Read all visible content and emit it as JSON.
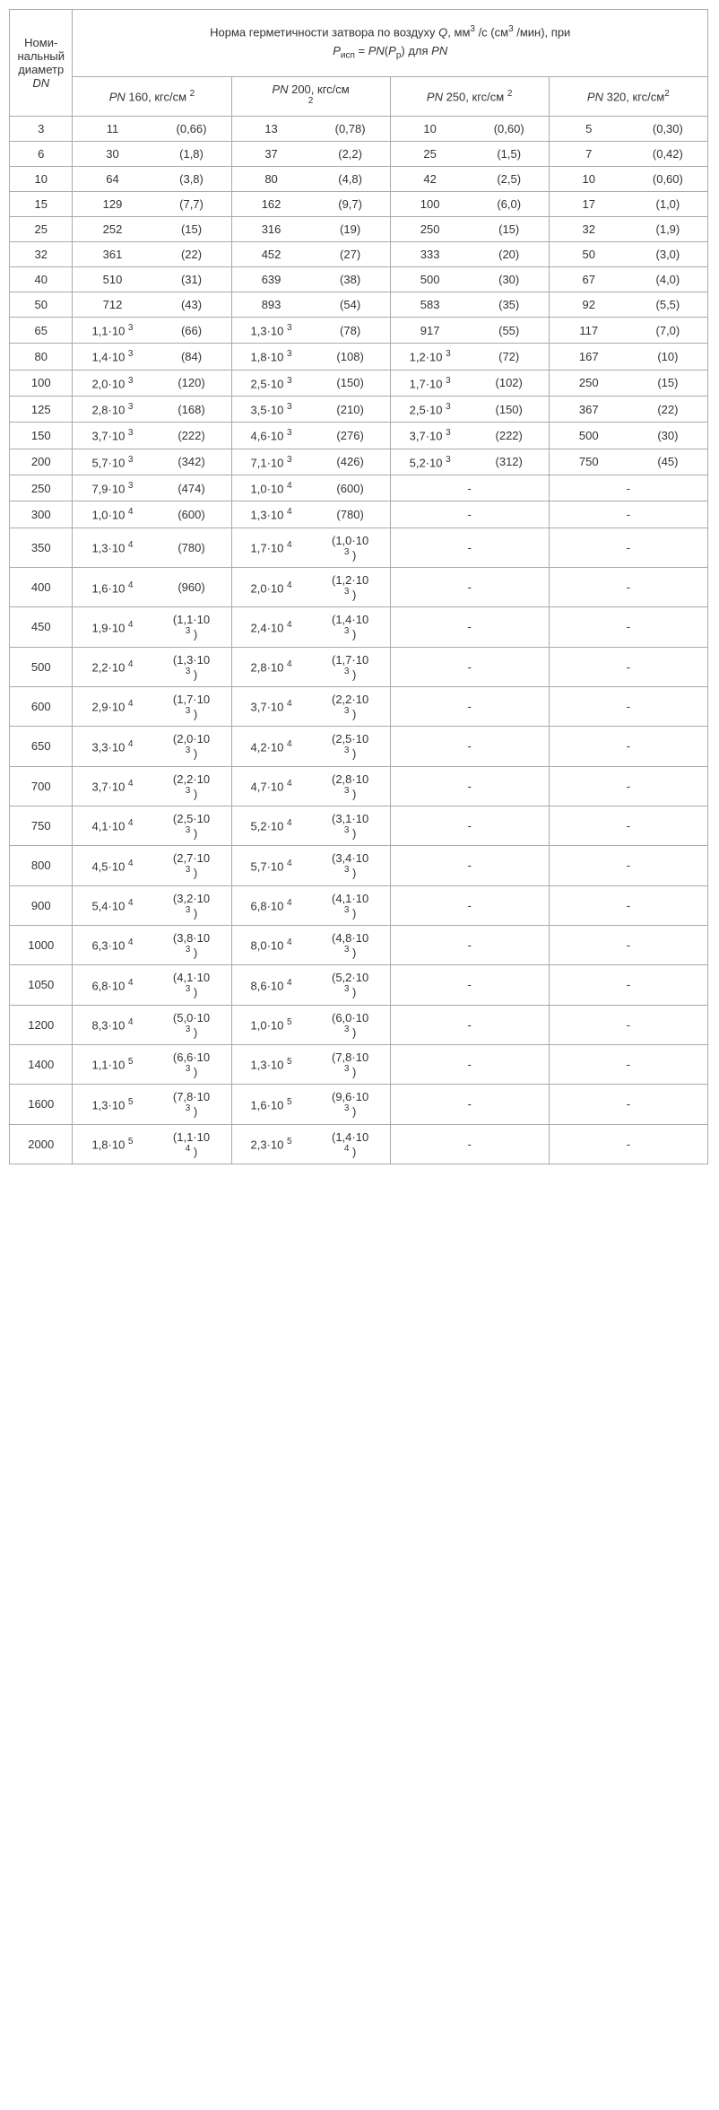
{
  "header": {
    "dn_label_l1": "Номи-",
    "dn_label_l2": "нальный",
    "dn_label_l3": "диаметр",
    "dn_symbol": "DN",
    "norm_line1_a": "Норма герметичности затвора по воздуху ",
    "norm_line1_q": "Q",
    "norm_line1_b": ", мм",
    "norm_line1_c": " /с (см",
    "norm_line1_d": " /мин), при",
    "norm_line2_a": "P",
    "norm_line2_sub": "исп",
    "norm_line2_eq": " = ",
    "norm_line2_pn": "PN",
    "norm_line2_paren_open": "(",
    "norm_line2_pp": "P",
    "norm_line2_pp_sub": "р",
    "norm_line2_paren_close": ")",
    "norm_line2_dlya": "  для  ",
    "norm_line2_pn2": "PN",
    "col_pn": "PN",
    "col_unit": ", кгс/см",
    "col_160": " 160",
    "col_200": " 200",
    "col_250": " 250",
    "col_320": " 320"
  },
  "rows": [
    {
      "dn": "3",
      "a1": "11",
      "b1": "(0,66)",
      "a2": "13",
      "b2": "(0,78)",
      "a3": "10",
      "b3": "(0,60)",
      "a4": "5",
      "b4": "(0,30)"
    },
    {
      "dn": "6",
      "a1": "30",
      "b1": "(1,8)",
      "a2": "37",
      "b2": "(2,2)",
      "a3": "25",
      "b3": "(1,5)",
      "a4": "7",
      "b4": "(0,42)"
    },
    {
      "dn": "10",
      "a1": "64",
      "b1": "(3,8)",
      "a2": "80",
      "b2": "(4,8)",
      "a3": "42",
      "b3": "(2,5)",
      "a4": "10",
      "b4": "(0,60)"
    },
    {
      "dn": "15",
      "a1": "129",
      "b1": "(7,7)",
      "a2": "162",
      "b2": "(9,7)",
      "a3": "100",
      "b3": "(6,0)",
      "a4": "17",
      "b4": "(1,0)"
    },
    {
      "dn": "25",
      "a1": "252",
      "b1": "(15)",
      "a2": "316",
      "b2": "(19)",
      "a3": "250",
      "b3": "(15)",
      "a4": "32",
      "b4": "(1,9)"
    },
    {
      "dn": "32",
      "a1": "361",
      "b1": "(22)",
      "a2": "452",
      "b2": "(27)",
      "a3": "333",
      "b3": "(20)",
      "a4": "50",
      "b4": "(3,0)"
    },
    {
      "dn": "40",
      "a1": "510",
      "b1": "(31)",
      "a2": "639",
      "b2": "(38)",
      "a3": "500",
      "b3": "(30)",
      "a4": "67",
      "b4": "(4,0)"
    },
    {
      "dn": "50",
      "a1": "712",
      "b1": "(43)",
      "a2": "893",
      "b2": "(54)",
      "a3": "583",
      "b3": "(35)",
      "a4": "92",
      "b4": "(5,5)"
    },
    {
      "dn": "65",
      "a1": "1,1·10",
      "e1": "3",
      "b1": "(66)",
      "a2": "1,3·10",
      "e2": "3",
      "b2": "(78)",
      "a3": "917",
      "b3": "(55)",
      "a4": "117",
      "b4": "(7,0)"
    },
    {
      "dn": "80",
      "a1": "1,4·10",
      "e1": "3",
      "b1": "(84)",
      "a2": "1,8·10",
      "e2": "3",
      "b2": "(108)",
      "a3": "1,2·10",
      "e3": "3",
      "b3": "(72)",
      "a4": "167",
      "b4": "(10)"
    },
    {
      "dn": "100",
      "a1": "2,0·10",
      "e1": "3",
      "b1": "(120)",
      "a2": "2,5·10",
      "e2": "3",
      "b2": "(150)",
      "a3": "1,7·10",
      "e3": "3",
      "b3": "(102)",
      "a4": "250",
      "b4": "(15)"
    },
    {
      "dn": "125",
      "a1": "2,8·10",
      "e1": "3",
      "b1": "(168)",
      "a2": "3,5·10",
      "e2": "3",
      "b2": "(210)",
      "a3": "2,5·10",
      "e3": "3",
      "b3": "(150)",
      "a4": "367",
      "b4": "(22)"
    },
    {
      "dn": "150",
      "a1": "3,7·10",
      "e1": "3",
      "b1": "(222)",
      "a2": "4,6·10",
      "e2": "3",
      "b2": "(276)",
      "a3": "3,7·10",
      "e3": "3",
      "b3": "(222)",
      "a4": "500",
      "b4": "(30)"
    },
    {
      "dn": "200",
      "a1": "5,7·10",
      "e1": "3",
      "b1": "(342)",
      "a2": "7,1·10",
      "e2": "3",
      "b2": "(426)",
      "a3": "5,2·10",
      "e3": "3",
      "b3": "(312)",
      "a4": "750",
      "b4": "(45)"
    },
    {
      "dn": "250",
      "a1": "7,9·10",
      "e1": "3",
      "b1": "(474)",
      "a2": "1,0·10",
      "e2": "4",
      "b2": "(600)",
      "dash34": true
    },
    {
      "dn": "300",
      "a1": "1,0·10",
      "e1": "4",
      "b1": "(600)",
      "a2": "1,3·10",
      "e2": "4",
      "b2": "(780)",
      "dash34": true
    },
    {
      "dn": "350",
      "a1": "1,3·10",
      "e1": "4",
      "b1": "(780)",
      "a2": "1,7·10",
      "e2": "4",
      "b2": "(1,0·10",
      "be2": "3",
      "b2_close": " )",
      "dash34": true
    },
    {
      "dn": "400",
      "a1": "1,6·10",
      "e1": "4",
      "b1": "(960)",
      "a2": "2,0·10",
      "e2": "4",
      "b2": "(1,2·10",
      "be2": "3",
      "b2_close": " )",
      "dash34": true
    },
    {
      "dn": "450",
      "a1": "1,9·10",
      "e1": "4",
      "b1": "(1,1·10",
      "be1": "3",
      "b1_close": " )",
      "a2": "2,4·10",
      "e2": "4",
      "b2": "(1,4·10",
      "be2": "3",
      "b2_close": " )",
      "dash34": true
    },
    {
      "dn": "500",
      "a1": "2,2·10",
      "e1": "4",
      "b1": "(1,3·10",
      "be1": "3",
      "b1_close": " )",
      "a2": "2,8·10",
      "e2": "4",
      "b2": "(1,7·10",
      "be2": "3",
      "b2_close": " )",
      "dash34": true
    },
    {
      "dn": "600",
      "a1": "2,9·10",
      "e1": "4",
      "b1": "(1,7·10",
      "be1": "3",
      "b1_close": " )",
      "a2": "3,7·10",
      "e2": "4",
      "b2": "(2,2·10",
      "be2": "3",
      "b2_close": " )",
      "dash34": true
    },
    {
      "dn": "650",
      "a1": "3,3·10",
      "e1": "4",
      "b1": "(2,0·10",
      "be1": "3",
      "b1_close": " )",
      "a2": "4,2·10",
      "e2": "4",
      "b2": "(2,5·10",
      "be2": "3",
      "b2_close": " )",
      "dash34": true
    },
    {
      "dn": "700",
      "a1": "3,7·10",
      "e1": "4",
      "b1": "(2,2·10",
      "be1": "3",
      "b1_close": " )",
      "a2": "4,7·10",
      "e2": "4",
      "b2": "(2,8·10",
      "be2": "3",
      "b2_close": " )",
      "dash34": true
    },
    {
      "dn": "750",
      "a1": "4,1·10",
      "e1": "4",
      "b1": "(2,5·10",
      "be1": "3",
      "b1_close": " )",
      "a2": "5,2·10",
      "e2": "4",
      "b2": "(3,1·10",
      "be2": "3",
      "b2_close": " )",
      "dash34": true
    },
    {
      "dn": "800",
      "a1": "4,5·10",
      "e1": "4",
      "b1": "(2,7·10",
      "be1": "3",
      "b1_close": " )",
      "a2": "5,7·10",
      "e2": "4",
      "b2": "(3,4·10",
      "be2": "3",
      "b2_close": " )",
      "dash34": true
    },
    {
      "dn": "900",
      "a1": "5,4·10",
      "e1": "4",
      "b1": "(3,2·10",
      "be1": "3",
      "b1_close": " )",
      "a2": "6,8·10",
      "e2": "4",
      "b2": "(4,1·10",
      "be2": "3",
      "b2_close": " )",
      "dash34": true
    },
    {
      "dn": "1000",
      "a1": "6,3·10",
      "e1": "4",
      "b1": "(3,8·10",
      "be1": "3",
      "b1_close": " )",
      "a2": "8,0·10",
      "e2": "4",
      "b2": "(4,8·10",
      "be2": "3",
      "b2_close": " )",
      "dash34": true
    },
    {
      "dn": "1050",
      "a1": "6,8·10",
      "e1": "4",
      "b1": "(4,1·10",
      "be1": "3",
      "b1_close": " )",
      "a2": "8,6·10",
      "e2": "4",
      "b2": "(5,2·10",
      "be2": "3",
      "b2_close": " )",
      "dash34": true
    },
    {
      "dn": "1200",
      "a1": "8,3·10",
      "e1": "4",
      "b1": "(5,0·10",
      "be1": "3",
      "b1_close": " )",
      "a2": "1,0·10",
      "e2": "5",
      "b2": "(6,0·10",
      "be2": "3",
      "b2_close": " )",
      "dash34": true
    },
    {
      "dn": "1400",
      "a1": "1,1·10",
      "e1": "5",
      "b1": "(6,6·10",
      "be1": "3",
      "b1_close": " )",
      "a2": "1,3·10",
      "e2": "5",
      "b2": "(7,8·10",
      "be2": "3",
      "b2_close": " )",
      "dash34": true
    },
    {
      "dn": "1600",
      "a1": "1,3·10",
      "e1": "5",
      "b1": "(7,8·10",
      "be1": "3",
      "b1_close": " )",
      "a2": "1,6·10",
      "e2": "5",
      "b2": "(9,6·10",
      "be2": "3",
      "b2_close": " )",
      "dash34": true
    },
    {
      "dn": "2000",
      "a1": "1,8·10",
      "e1": "5",
      "b1": "(1,1·10",
      "be1": "4",
      "b1_close": " )",
      "a2": "2,3·10",
      "e2": "5",
      "b2": "(1,4·10",
      "be2": "4",
      "b2_close": " )",
      "dash34": true
    }
  ],
  "dash": "-"
}
